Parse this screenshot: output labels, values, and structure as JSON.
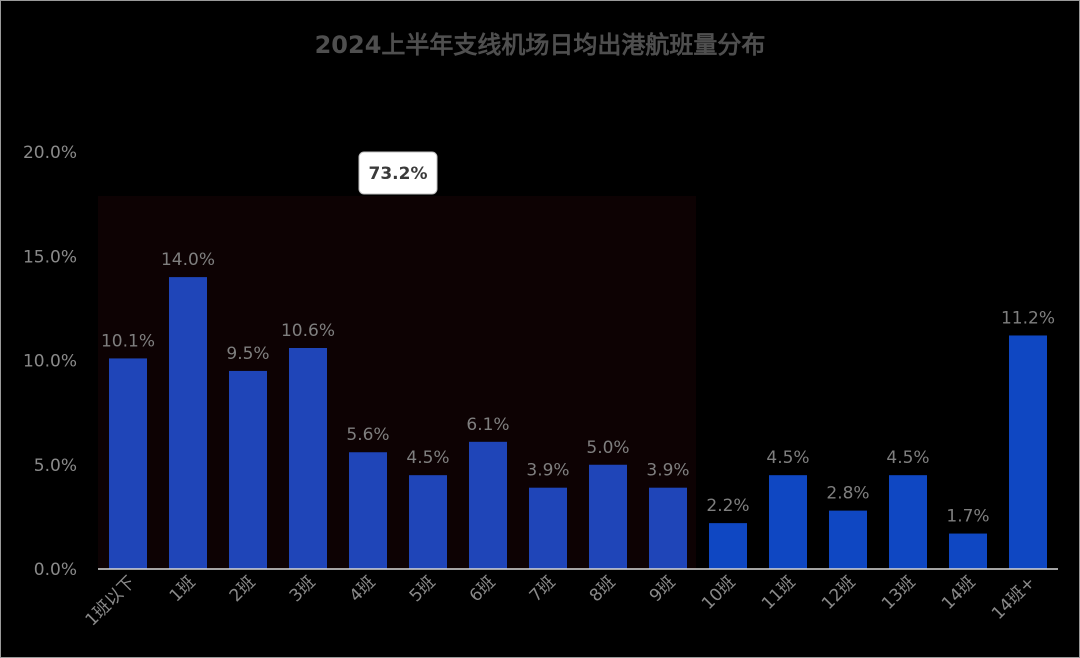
{
  "chart_data": {
    "type": "bar",
    "title": "2024上半年支线机场日均出港航班量分布",
    "categories": [
      "1班以下",
      "1班",
      "2班",
      "3班",
      "4班",
      "5班",
      "6班",
      "7班",
      "8班",
      "9班",
      "10班",
      "11班",
      "12班",
      "13班",
      "14班",
      "14班+"
    ],
    "values": [
      10.1,
      14.0,
      9.5,
      10.6,
      5.6,
      4.5,
      6.1,
      3.9,
      5.0,
      3.9,
      2.2,
      4.5,
      2.8,
      4.5,
      1.7,
      11.2
    ],
    "data_labels": [
      "10.1%",
      "14.0%",
      "9.5%",
      "10.6%",
      "5.6%",
      "4.5%",
      "6.1%",
      "3.9%",
      "5.0%",
      "3.9%",
      "2.2%",
      "4.5%",
      "2.8%",
      "4.5%",
      "1.7%",
      "11.2%"
    ],
    "y_ticks": [
      0,
      5,
      10,
      15,
      20
    ],
    "y_tick_labels": [
      "0.0%",
      "5.0%",
      "10.0%",
      "15.0%",
      "20.0%"
    ],
    "ylim": [
      0,
      20
    ],
    "xlabel": "",
    "ylabel": "",
    "grid": false,
    "highlight": {
      "from_category": "1班以下",
      "to_category": "9班",
      "label": "73.2%"
    },
    "colors": {
      "bar_primary": "#1f45b8",
      "bar_secondary": "#0f47c2",
      "highlight_band": "#0d0203",
      "axis": "#d9d9d9"
    }
  }
}
